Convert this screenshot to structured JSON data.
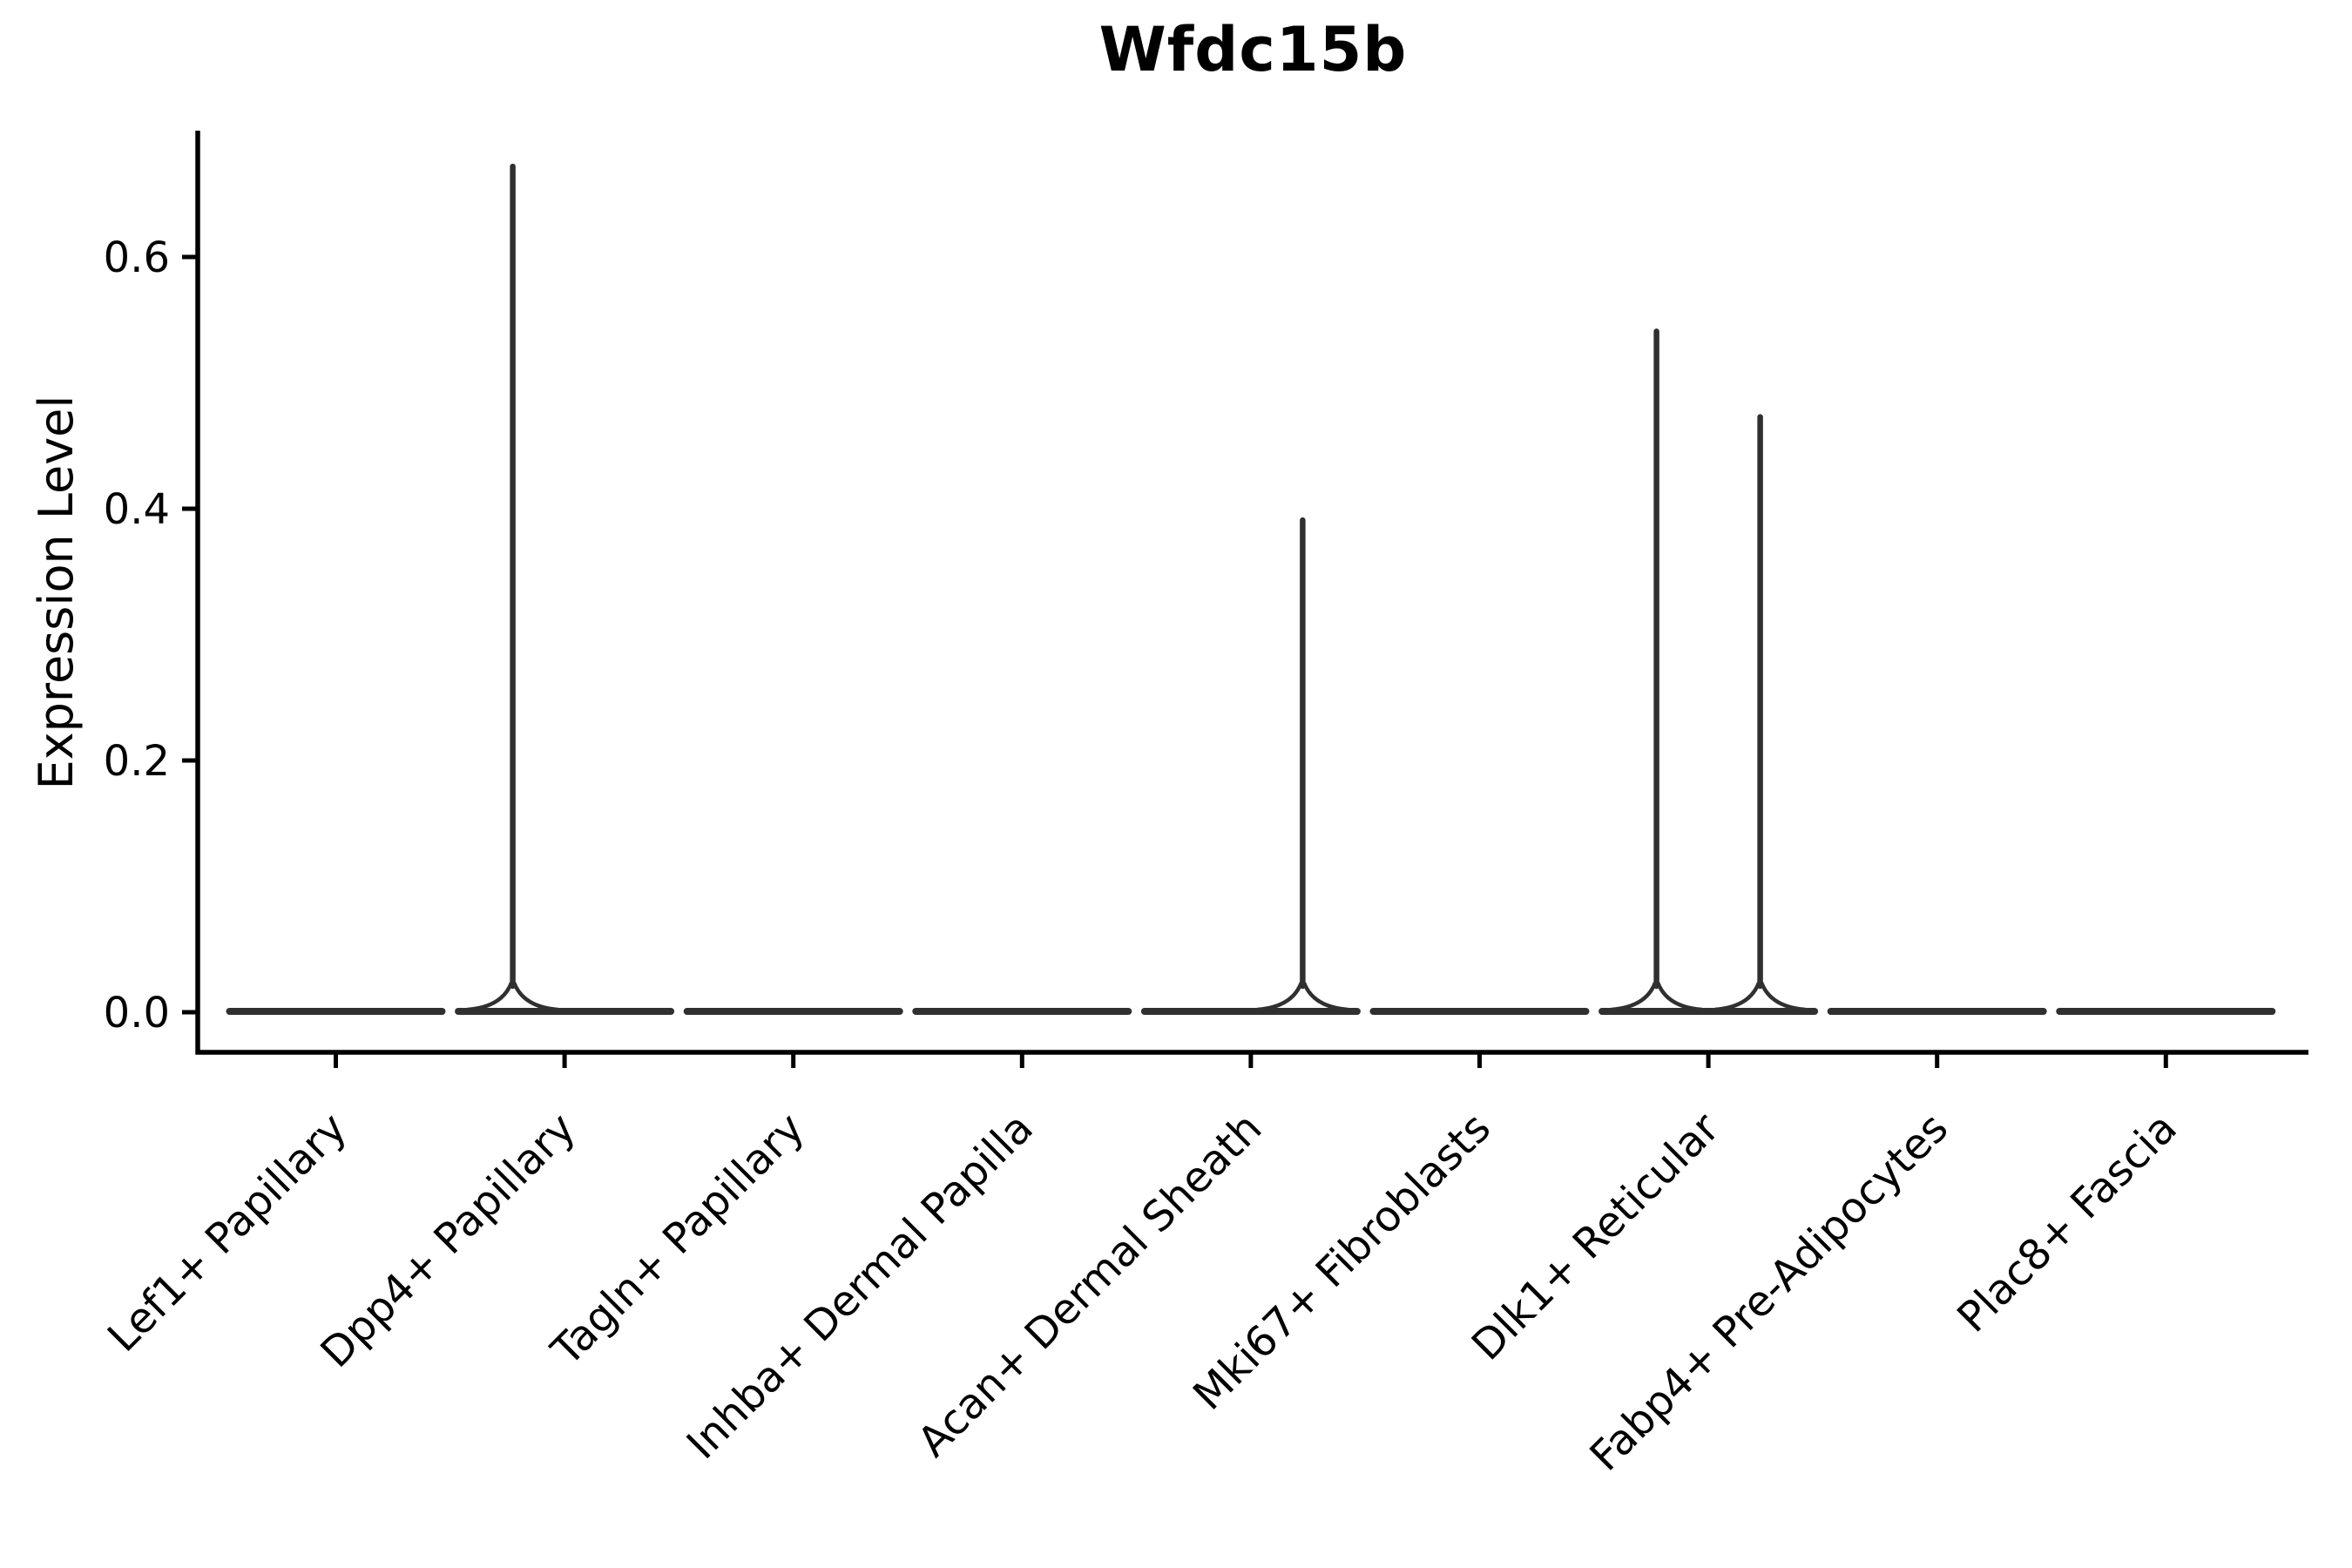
{
  "figure": {
    "background": "#ffffff"
  },
  "chart_data": {
    "type": "violin",
    "title": "Wfdc15b",
    "xlabel": "",
    "ylabel": "Expression Level",
    "categories": [
      "Lef1+ Papillary",
      "Dpp4+ Papillary",
      "Tagln+ Papillary",
      "Inhba+ Dermal Papilla",
      "Acan+ Dermal Sheath",
      "Mki67+ Fibroblasts",
      "Dlk1+ Reticular",
      "Fabp4+ Pre-Adipocytes",
      "Plac8+ Fascia"
    ],
    "y_ticks": [
      0.0,
      0.2,
      0.4,
      0.6
    ],
    "ylim": [
      -0.032,
      0.7
    ],
    "grid": false,
    "legend": "none",
    "axis_color": "#000000",
    "violin_color": "#303030",
    "violins": [
      {
        "category": "Lef1+ Papillary",
        "baseline_value": 0.0,
        "max_expression": 0.0,
        "spikes": []
      },
      {
        "category": "Dpp4+ Papillary",
        "baseline_value": 0.0,
        "max_expression": 0.674,
        "spikes": [
          {
            "side": "left",
            "value": 0.674
          }
        ]
      },
      {
        "category": "Tagln+ Papillary",
        "baseline_value": 0.0,
        "max_expression": 0.0,
        "spikes": []
      },
      {
        "category": "Inhba+ Dermal Papilla",
        "baseline_value": 0.0,
        "max_expression": 0.0,
        "spikes": []
      },
      {
        "category": "Acan+ Dermal Sheath",
        "baseline_value": 0.0,
        "max_expression": 0.393,
        "spikes": [
          {
            "side": "right",
            "value": 0.393
          }
        ]
      },
      {
        "category": "Mki67+ Fibroblasts",
        "baseline_value": 0.0,
        "max_expression": 0.0,
        "spikes": []
      },
      {
        "category": "Dlk1+ Reticular",
        "baseline_value": 0.0,
        "max_expression": 0.543,
        "spikes": [
          {
            "side": "left",
            "value": 0.543
          },
          {
            "side": "right",
            "value": 0.475
          }
        ]
      },
      {
        "category": "Fabp4+ Pre-Adipocytes",
        "baseline_value": 0.0,
        "max_expression": 0.0,
        "spikes": []
      },
      {
        "category": "Plac8+ Fascia",
        "baseline_value": 0.0,
        "max_expression": 0.0,
        "spikes": []
      }
    ]
  }
}
